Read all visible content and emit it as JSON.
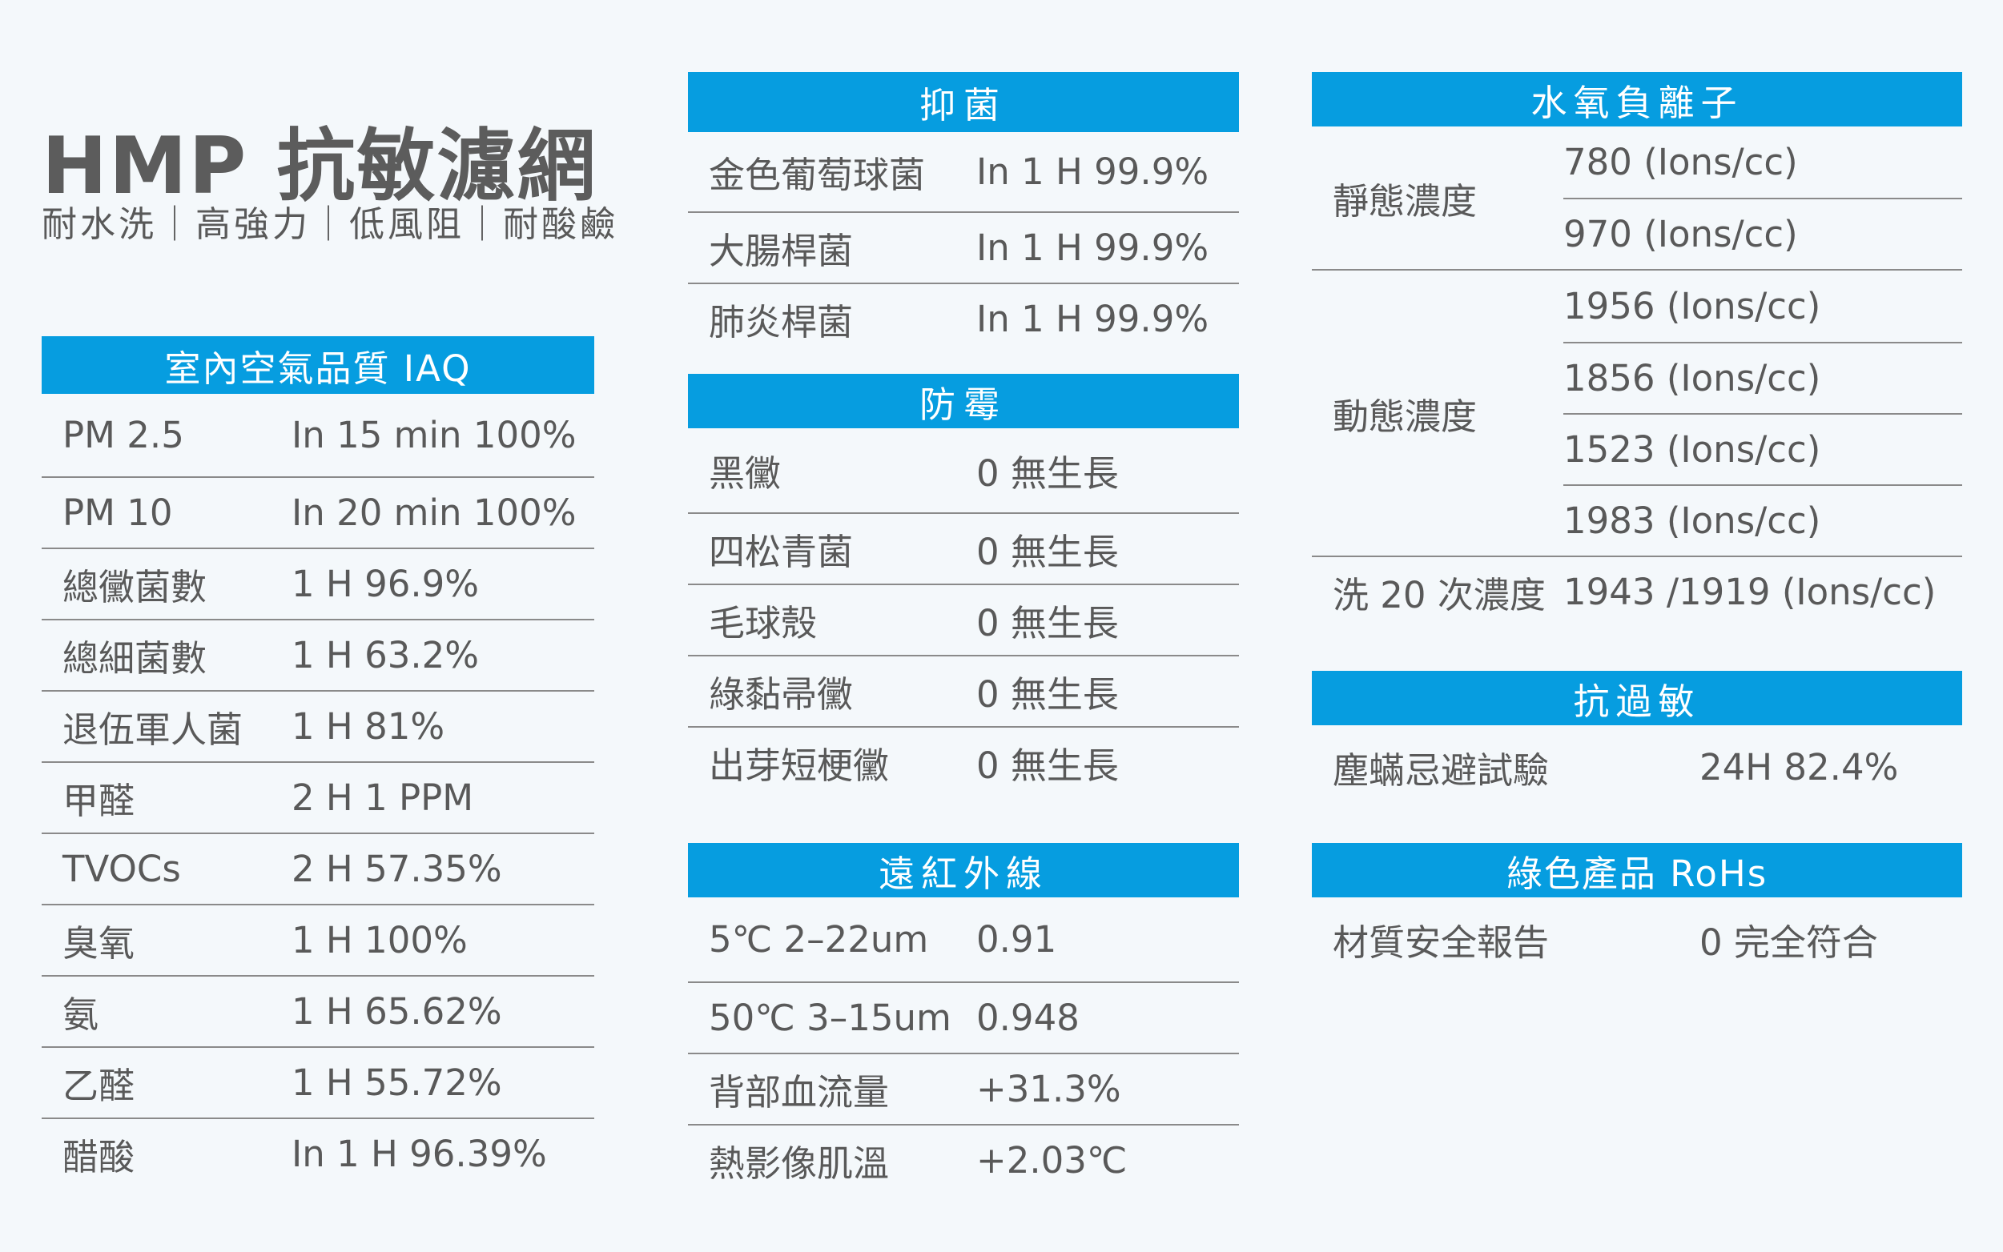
{
  "header": {
    "title": "HMP 抗敏濾網",
    "subtitle": "耐水洗｜高強力｜低風阻｜耐酸鹼"
  },
  "iaq": {
    "title": "室內空氣品質 IAQ",
    "rows": [
      {
        "name": "PM 2.5",
        "value": "In 15 min 100%"
      },
      {
        "name": "PM 10",
        "value": "In 20 min 100%"
      },
      {
        "name": "總黴菌數",
        "value": "1 H 96.9%"
      },
      {
        "name": "總細菌數",
        "value": "1 H 63.2%"
      },
      {
        "name": "退伍軍人菌",
        "value": "1 H 81%"
      },
      {
        "name": "甲醛",
        "value": "2 H 1 PPM"
      },
      {
        "name": "TVOCs",
        "value": "2 H 57.35%"
      },
      {
        "name": "臭氧",
        "value": "1 H 100%"
      },
      {
        "name": "氨",
        "value": "1 H 65.62%"
      },
      {
        "name": "乙醛",
        "value": "1 H 55.72%"
      },
      {
        "name": "醋酸",
        "value": "In 1 H 96.39%"
      }
    ]
  },
  "antibacterial": {
    "title": "抑菌",
    "rows": [
      {
        "name": "金色葡萄球菌",
        "value": "In 1 H 99.9%"
      },
      {
        "name": "大腸桿菌",
        "value": "In 1 H 99.9%"
      },
      {
        "name": "肺炎桿菌",
        "value": "In 1 H 99.9%"
      }
    ]
  },
  "antimold": {
    "title": "防霉",
    "rows": [
      {
        "name": "黑黴",
        "value": "0 無生長"
      },
      {
        "name": "四松青菌",
        "value": "0 無生長"
      },
      {
        "name": "毛球殼",
        "value": "0 無生長"
      },
      {
        "name": "綠黏帚黴",
        "value": "0 無生長"
      },
      {
        "name": "出芽短梗黴",
        "value": "0 無生長"
      }
    ]
  },
  "far_infrared": {
    "title": "遠紅外線",
    "rows": [
      {
        "name": "5℃ 2–22um",
        "value": "0.91"
      },
      {
        "name": "50℃ 3–15um",
        "value": "0.948"
      },
      {
        "name": "背部血流量",
        "value": "+31.3%"
      },
      {
        "name": "熱影像肌溫",
        "value": "+2.03℃"
      }
    ]
  },
  "negative_ions": {
    "title": "水氧負離子",
    "static": {
      "label": "靜態濃度",
      "values": [
        "780 (Ions/cc)",
        "970 (Ions/cc)"
      ]
    },
    "dynamic": {
      "label": "動態濃度",
      "values": [
        "1956 (Ions/cc)",
        "1856 (Ions/cc)",
        "1523 (Ions/cc)",
        "1983 (Ions/cc)"
      ]
    },
    "washed": {
      "label": "洗 20 次濃度",
      "value": "1943 /1919 (Ions/cc)"
    }
  },
  "anti_allergy": {
    "title": "抗過敏",
    "rows": [
      {
        "name": "塵蟎忌避試驗",
        "value": "24H 82.4%"
      }
    ]
  },
  "rohs": {
    "title": "綠色產品 RoHs",
    "rows": [
      {
        "name": "材質安全報告",
        "value": "0 完全符合"
      }
    ]
  },
  "colors": {
    "header_bg": "#069de0",
    "background": "#f4f8fb",
    "text": "#595959",
    "divider": "#8a8a8a"
  }
}
